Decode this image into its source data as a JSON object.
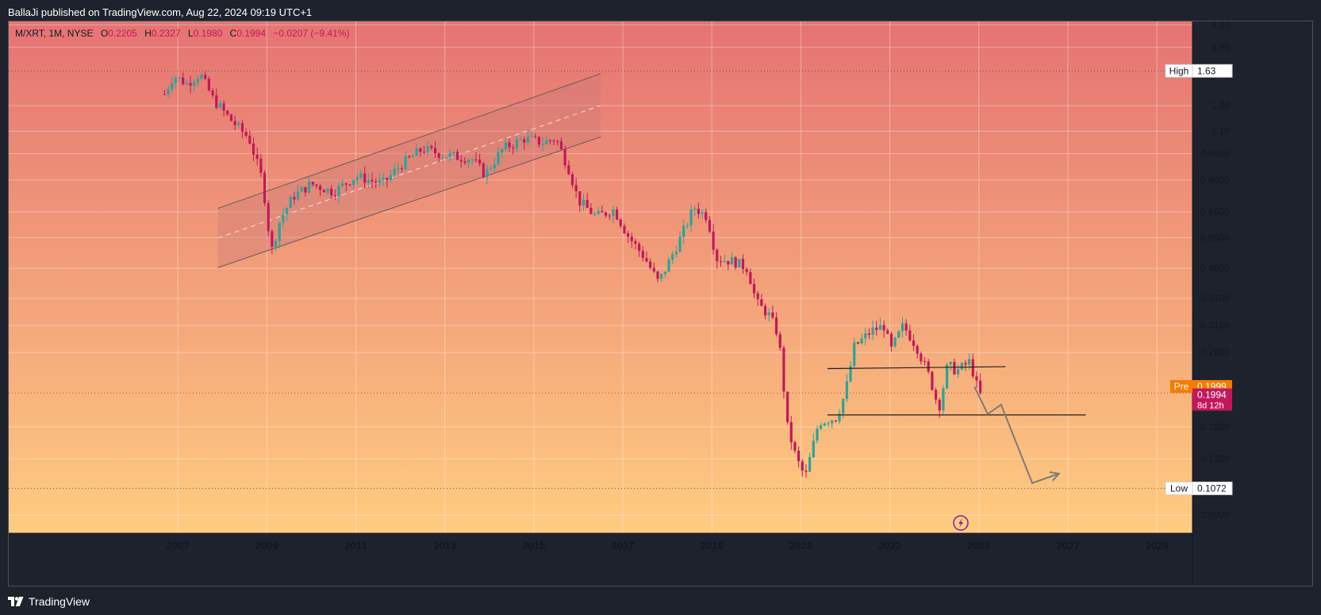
{
  "header": {
    "published_text": "BallaJi published on TradingView.com, Aug 22, 2024 09:19 UTC+1"
  },
  "footer": {
    "brand_label": "TradingView"
  },
  "legend": {
    "symbol": "M/XRT, 1M, NYSE",
    "open_label": "O",
    "open_value": "0.2205",
    "high_label": "H",
    "high_value": "0.2327",
    "low_label": "L",
    "low_value": "0.1980",
    "close_label": "C",
    "close_value": "0.1994",
    "change": "−0.0207 (−9.41%)"
  },
  "colors": {
    "up": "#26a69a",
    "down": "#c2185b",
    "background_top": "#e57373",
    "background_bottom": "#ffcc80",
    "pre_badge": "#f57c00",
    "last_badge": "#c2185b"
  },
  "chart_data": {
    "type": "candlestick",
    "title": "M/XRT, 1M, NYSE",
    "y_scale": "log",
    "ylim": [
      0.08,
      2.25
    ],
    "xlim": [
      2003.2,
      2029.8
    ],
    "x_ticks": [
      "2007",
      "2009",
      "2011",
      "2013",
      "2015",
      "2017",
      "2019",
      "2021",
      "2023",
      "2025",
      "2027",
      "2029"
    ],
    "y_ticks": [
      "2.20",
      "1.90",
      "1.30",
      "1.10",
      "0.9500",
      "0.8000",
      "0.6500",
      "0.5500",
      "0.4500",
      "0.3700",
      "0.3100",
      "0.2600",
      "0.1600",
      "0.1300",
      "0.0900"
    ],
    "price_labels": [
      {
        "label": "High",
        "value": "1.63",
        "y": 1.63
      },
      {
        "label": "Pre",
        "value": "0.1999",
        "y": 0.1999
      },
      {
        "label": "",
        "value": "0.1994",
        "sub": "8d 12h",
        "y": 0.1994
      },
      {
        "label": "Low",
        "value": "0.1072",
        "y": 0.1072
      }
    ],
    "anchors": [
      [
        2006.7,
        1.4
      ],
      [
        2006.9,
        1.58
      ],
      [
        2007.2,
        1.5
      ],
      [
        2007.5,
        1.6
      ],
      [
        2007.8,
        1.35
      ],
      [
        2008.2,
        1.18
      ],
      [
        2008.6,
        1.05
      ],
      [
        2008.9,
        0.8
      ],
      [
        2009.1,
        0.5
      ],
      [
        2009.3,
        0.62
      ],
      [
        2009.6,
        0.72
      ],
      [
        2010.0,
        0.78
      ],
      [
        2010.5,
        0.74
      ],
      [
        2011.0,
        0.82
      ],
      [
        2011.6,
        0.78
      ],
      [
        2012.0,
        0.88
      ],
      [
        2012.5,
        0.98
      ],
      [
        2013.0,
        0.94
      ],
      [
        2013.6,
        0.92
      ],
      [
        2013.9,
        0.83
      ],
      [
        2014.3,
        0.98
      ],
      [
        2014.8,
        1.05
      ],
      [
        2015.2,
        1.02
      ],
      [
        2015.5,
        1.05
      ],
      [
        2015.8,
        0.85
      ],
      [
        2016.0,
        0.7
      ],
      [
        2016.4,
        0.63
      ],
      [
        2016.8,
        0.66
      ],
      [
        2017.1,
        0.56
      ],
      [
        2017.5,
        0.48
      ],
      [
        2017.8,
        0.41
      ],
      [
        2018.0,
        0.46
      ],
      [
        2018.3,
        0.55
      ],
      [
        2018.6,
        0.67
      ],
      [
        2018.9,
        0.63
      ],
      [
        2019.1,
        0.48
      ],
      [
        2019.5,
        0.47
      ],
      [
        2019.8,
        0.45
      ],
      [
        2020.0,
        0.36
      ],
      [
        2020.3,
        0.33
      ],
      [
        2020.5,
        0.29
      ],
      [
        2020.7,
        0.16
      ],
      [
        2020.9,
        0.13
      ],
      [
        2021.1,
        0.115
      ],
      [
        2021.4,
        0.165
      ],
      [
        2021.8,
        0.17
      ],
      [
        2022.0,
        0.2
      ],
      [
        2022.2,
        0.27
      ],
      [
        2022.6,
        0.3
      ],
      [
        2022.9,
        0.31
      ],
      [
        2023.0,
        0.26
      ],
      [
        2023.3,
        0.31
      ],
      [
        2023.6,
        0.27
      ],
      [
        2023.9,
        0.22
      ],
      [
        2024.1,
        0.18
      ],
      [
        2024.3,
        0.24
      ],
      [
        2024.5,
        0.23
      ],
      [
        2024.8,
        0.245
      ],
      [
        2024.95,
        0.21
      ],
      [
        2025.0,
        0.1994
      ]
    ],
    "drawings": {
      "channel": {
        "upper": [
          [
            2007.9,
            0.665
          ],
          [
            2016.5,
            1.6
          ]
        ],
        "lower": [
          [
            2007.9,
            0.452
          ],
          [
            2016.5,
            1.06
          ]
        ],
        "mid": [
          [
            2007.9,
            0.548
          ],
          [
            2016.5,
            1.3
          ]
        ]
      },
      "resistance_line": [
        [
          2021.6,
          0.234
        ],
        [
          2025.6,
          0.237
        ]
      ],
      "support_line": [
        [
          2021.6,
          0.173
        ],
        [
          2027.4,
          0.173
        ]
      ],
      "projection_path": [
        [
          2024.9,
          0.208
        ],
        [
          2025.2,
          0.174
        ],
        [
          2025.5,
          0.185
        ],
        [
          2026.2,
          0.111
        ],
        [
          2026.8,
          0.118
        ]
      ]
    }
  }
}
